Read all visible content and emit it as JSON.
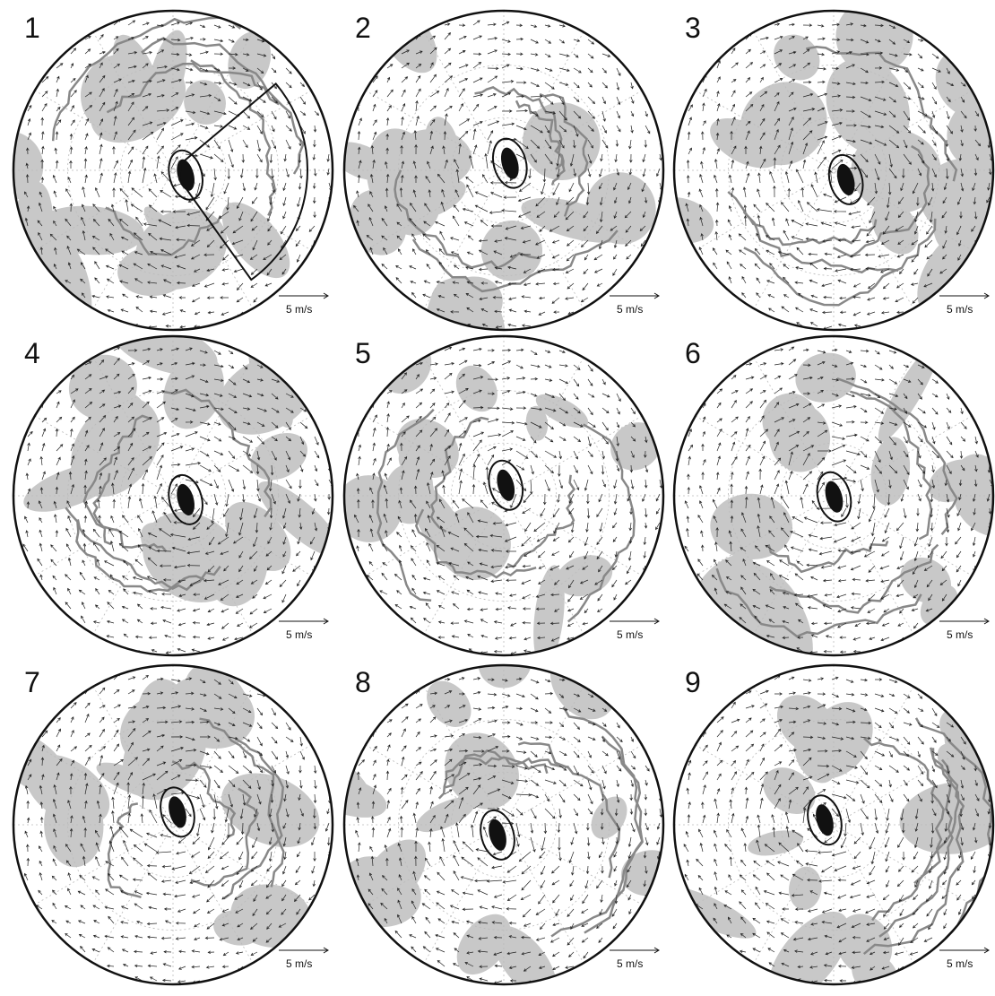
{
  "panels": [
    {
      "label": "1",
      "scale": "5 m/s"
    },
    {
      "label": "2",
      "scale": "5 m/s"
    },
    {
      "label": "3",
      "scale": "5 m/s"
    },
    {
      "label": "4",
      "scale": "5 m/s"
    },
    {
      "label": "5",
      "scale": "5 m/s"
    },
    {
      "label": "6",
      "scale": "5 m/s"
    },
    {
      "label": "7",
      "scale": "5 m/s"
    },
    {
      "label": "8",
      "scale": "5 m/s"
    },
    {
      "label": "9",
      "scale": "5 m/s"
    }
  ]
}
